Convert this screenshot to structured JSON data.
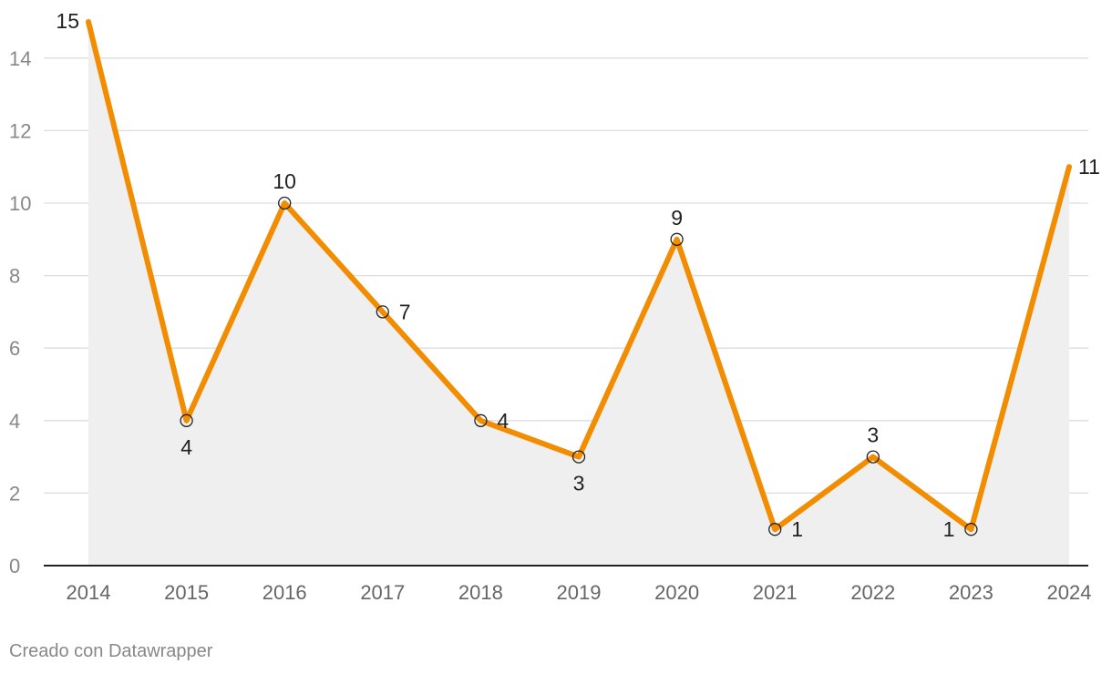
{
  "chart_data": {
    "type": "line",
    "title": "",
    "xlabel": "",
    "ylabel": "",
    "x": [
      "2014",
      "2015",
      "2016",
      "2017",
      "2018",
      "2019",
      "2020",
      "2021",
      "2022",
      "2023",
      "2024"
    ],
    "series": [
      {
        "values": [
          15,
          4,
          10,
          7,
          4,
          3,
          9,
          1,
          3,
          1,
          11
        ]
      }
    ],
    "ylim": [
      0,
      15
    ],
    "yticks": [
      0,
      2,
      4,
      6,
      8,
      10,
      12,
      14
    ],
    "grid": true,
    "area_fill": true,
    "colors": {
      "line": "#f28c00",
      "area": "#efefef",
      "grid": "#dddddd",
      "axis": "#222222"
    }
  },
  "footer": {
    "credit": "Creado con Datawrapper"
  }
}
